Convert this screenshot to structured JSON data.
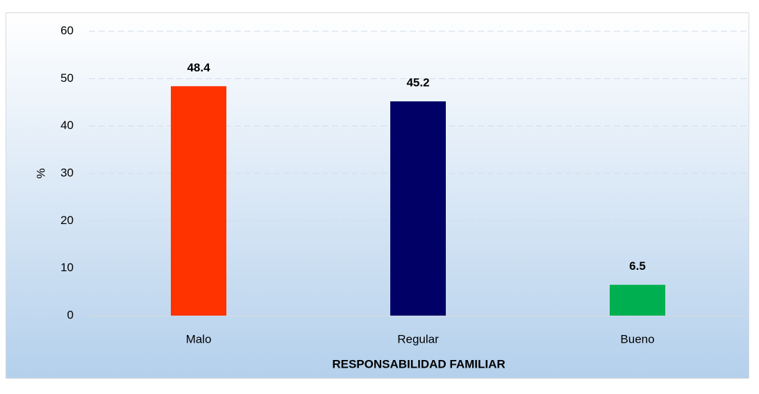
{
  "chart_data": {
    "type": "bar",
    "x_label": "RESPONSABILIDAD FAMILIAR",
    "y_label": "%",
    "categories": [
      "Malo",
      "Regular",
      "Bueno"
    ],
    "values": [
      48.4,
      45.2,
      6.5
    ],
    "colors": [
      "#ff3300",
      "#000066",
      "#00b050"
    ],
    "ylim": [
      0,
      60
    ],
    "yticks": [
      0,
      10,
      20,
      30,
      40,
      50,
      60
    ],
    "grid": true
  }
}
